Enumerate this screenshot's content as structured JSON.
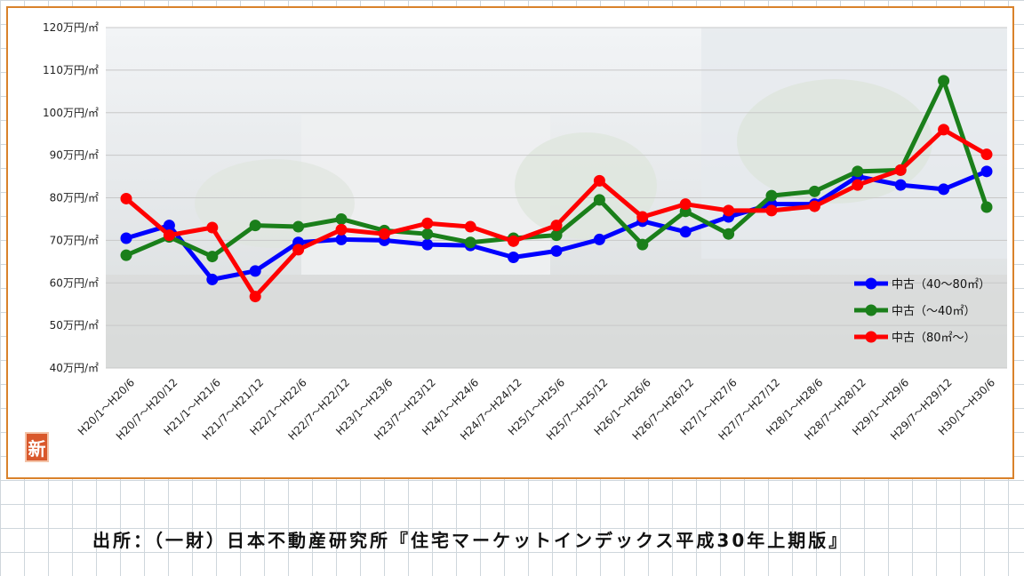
{
  "chart_data": {
    "type": "line",
    "title": "",
    "xlabel": "",
    "ylabel": "",
    "y_unit": "万円/㎡",
    "ylim": [
      40,
      120
    ],
    "yticks": [
      "120万円/㎡",
      "110万円/㎡",
      "100万円/㎡",
      "90万円/㎡",
      "80万円/㎡",
      "70万円/㎡",
      "60万円/㎡",
      "50万円/㎡",
      "40万円/㎡"
    ],
    "ytick_values": [
      120,
      110,
      100,
      90,
      80,
      70,
      60,
      50,
      40
    ],
    "grid": true,
    "legend_position": "right",
    "categories": [
      "H20/1～H20/6",
      "H20/7～H20/12",
      "H21/1～H21/6",
      "H21/7～H21/12",
      "H22/1～H22/6",
      "H22/7～H22/12",
      "H23/1～H23/6",
      "H23/7～H23/12",
      "H24/1～H24/6",
      "H24/7～H24/12",
      "H25/1～H25/6",
      "H25/7～H25/12",
      "H26/1～H26/6",
      "H26/7～H26/12",
      "H27/1～H27/6",
      "H27/7～H27/12",
      "H28/1～H28/6",
      "H28/7～H28/12",
      "H29/1～H29/6",
      "H29/7～H29/12",
      "H30/1～H30/6"
    ],
    "series": [
      {
        "name": "中古（40～80㎡）",
        "color": "#0000ff",
        "values": [
          70.5,
          73.5,
          60.8,
          62.8,
          69.5,
          70.2,
          70.0,
          69.0,
          68.8,
          66.0,
          67.5,
          70.2,
          74.5,
          72.0,
          75.5,
          78.5,
          78.5,
          85.0,
          83.0,
          82.0,
          86.2
        ]
      },
      {
        "name": "中古（～40㎡）",
        "color": "#1a7f1a",
        "values": [
          66.5,
          70.8,
          66.2,
          73.5,
          73.2,
          75.0,
          72.3,
          71.5,
          69.5,
          70.5,
          71.2,
          79.5,
          69.0,
          76.8,
          71.5,
          80.5,
          81.5,
          86.2,
          86.5,
          107.5,
          77.8
        ]
      },
      {
        "name": "中古（80㎡～）",
        "color": "#ff0000",
        "values": [
          79.8,
          71.2,
          73.0,
          56.8,
          67.8,
          72.5,
          71.5,
          74.0,
          73.2,
          69.8,
          73.5,
          84.0,
          75.5,
          78.5,
          77.0,
          77.0,
          78.0,
          83.0,
          86.5,
          96.0,
          90.2
        ]
      }
    ]
  },
  "logo": {
    "glyph": "新"
  },
  "source_note": "出所：（一財）日本不動産研究所『住宅マーケットインデックス平成30年上期版』"
}
